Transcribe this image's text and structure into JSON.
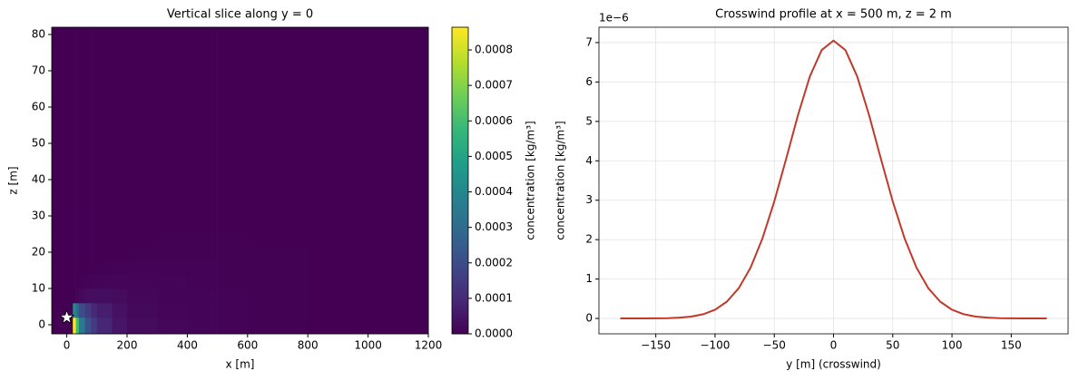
{
  "chart_data": [
    {
      "type": "heatmap",
      "title": "Vertical slice along y = 0",
      "x_label": "x  [m]",
      "y_label": "z  [m]",
      "x_edges": [
        -50,
        10,
        20,
        30,
        40,
        60,
        80,
        100,
        150,
        200,
        300,
        400,
        500,
        600,
        800,
        1200
      ],
      "y_edges": [
        -2.5,
        2,
        6,
        10,
        14,
        18,
        22,
        26,
        30,
        82
      ],
      "values": [
        [
          0,
          0,
          0.00086,
          0.0006,
          0.00035,
          0.00022,
          0.00015,
          9e-05,
          5e-05,
          2.5e-05,
          1.5e-05,
          1e-05,
          5e-06,
          2e-06,
          1e-06
        ],
        [
          0,
          0,
          0.0004,
          0.0003,
          0.0002,
          0.00015,
          0.0001,
          7e-05,
          4e-05,
          2e-05,
          1.2e-05,
          8e-06,
          4e-06,
          2e-06,
          1e-06
        ],
        [
          0,
          0,
          0,
          1e-05,
          2e-05,
          3e-05,
          3e-05,
          3e-05,
          2.5e-05,
          1.5e-05,
          1e-05,
          7e-06,
          4e-06,
          2e-06,
          1e-06
        ],
        [
          0,
          0,
          0,
          0,
          2e-06,
          5e-06,
          8e-06,
          1e-05,
          1.2e-05,
          1e-05,
          8e-06,
          6e-06,
          3e-06,
          2e-06,
          1e-06
        ],
        [
          0,
          0,
          0,
          0,
          0,
          0,
          1e-06,
          2e-06,
          4e-06,
          6e-06,
          5e-06,
          4e-06,
          3e-06,
          2e-06,
          1e-06
        ],
        [
          0,
          0,
          0,
          0,
          0,
          0,
          0,
          0,
          1e-06,
          2e-06,
          3e-06,
          3e-06,
          2e-06,
          2e-06,
          1e-06
        ],
        [
          0,
          0,
          0,
          0,
          0,
          0,
          0,
          0,
          0,
          1e-06,
          2e-06,
          2e-06,
          2e-06,
          1e-06,
          1e-06
        ],
        [
          0,
          0,
          0,
          0,
          0,
          0,
          0,
          0,
          0,
          0,
          1e-06,
          1e-06,
          1e-06,
          1e-06,
          1e-06
        ],
        [
          0,
          0,
          0,
          0,
          0,
          0,
          0,
          0,
          0,
          0,
          0,
          0,
          0,
          0,
          0
        ]
      ],
      "colormap": "viridis",
      "clim": [
        0,
        0.000864
      ],
      "colorbar_label": "concentration [kg/m³]",
      "colorbar_ticks": [
        {
          "value": 0,
          "label": "0.0000"
        },
        {
          "value": 0.0001,
          "label": "0.0001"
        },
        {
          "value": 0.0002,
          "label": "0.0002"
        },
        {
          "value": 0.0003,
          "label": "0.0003"
        },
        {
          "value": 0.0004,
          "label": "0.0004"
        },
        {
          "value": 0.0005,
          "label": "0.0005"
        },
        {
          "value": 0.0006,
          "label": "0.0006"
        },
        {
          "value": 0.0007,
          "label": "0.0007"
        },
        {
          "value": 0.0008,
          "label": "0.0008"
        }
      ],
      "marker": {
        "x": 0,
        "y": 2,
        "color": "#ffffff"
      },
      "xlim": [
        -50,
        1200
      ],
      "ylim": [
        -2.5,
        82
      ],
      "xticks": [
        0,
        200,
        400,
        600,
        800,
        1000,
        1200
      ],
      "yticks": [
        0,
        10,
        20,
        30,
        40,
        50,
        60,
        70,
        80
      ]
    },
    {
      "type": "line",
      "title": "Crosswind profile at x = 500 m, z = 2 m",
      "x_label": "y  [m]  (crosswind)",
      "y_label": "concentration [kg/m³]",
      "y_offset_label": "1e−6",
      "color": "#c0392b",
      "grid": true,
      "x": [
        -180,
        -170,
        -160,
        -150,
        -140,
        -130,
        -120,
        -110,
        -100,
        -90,
        -80,
        -70,
        -60,
        -50,
        -40,
        -30,
        -20,
        -10,
        0,
        10,
        20,
        30,
        40,
        50,
        60,
        70,
        80,
        90,
        100,
        110,
        120,
        130,
        140,
        150,
        160,
        170,
        180
      ],
      "values": [
        1e-10,
        3e-10,
        1e-09,
        2.9e-09,
        8e-09,
        2.02e-08,
        4.8e-08,
        1.07e-07,
        2.21e-07,
        4.27e-07,
        7.68e-07,
        1.29e-06,
        2.03e-06,
        2.97e-06,
        4.05e-06,
        5.16e-06,
        6.14e-06,
        6.81e-06,
        7.05e-06,
        6.81e-06,
        6.14e-06,
        5.16e-06,
        4.05e-06,
        2.97e-06,
        2.03e-06,
        1.29e-06,
        7.68e-07,
        4.27e-07,
        2.21e-07,
        1.07e-07,
        4.8e-08,
        2.02e-08,
        8e-09,
        2.9e-09,
        1e-09,
        3e-10,
        1e-10
      ],
      "xlim": [
        -198,
        198
      ],
      "ylim": [
        -3.9e-07,
        7.39e-06
      ],
      "xticks": [
        {
          "value": -150,
          "label": "−150"
        },
        {
          "value": -100,
          "label": "−100"
        },
        {
          "value": -50,
          "label": "−50"
        },
        0,
        50,
        100,
        150
      ],
      "yticks": [
        0,
        {
          "value": 1e-06,
          "label": "1"
        },
        {
          "value": 2e-06,
          "label": "2"
        },
        {
          "value": 3e-06,
          "label": "3"
        },
        {
          "value": 4e-06,
          "label": "4"
        },
        {
          "value": 5e-06,
          "label": "5"
        },
        {
          "value": 6e-06,
          "label": "6"
        },
        {
          "value": 7e-06,
          "label": "7"
        }
      ]
    }
  ]
}
